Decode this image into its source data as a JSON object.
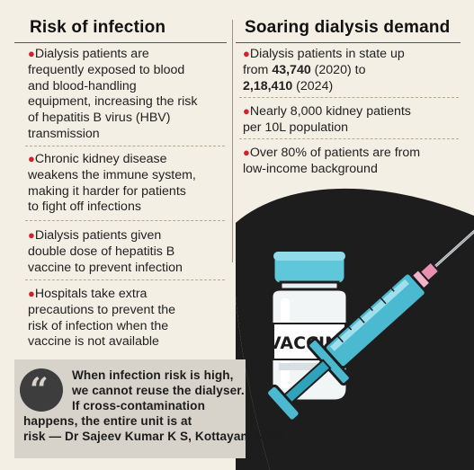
{
  "left": {
    "heading": "Risk of infection",
    "bullets": [
      {
        "lines": [
          "Dialysis patients are",
          "frequently exposed to blood",
          "and blood-handling",
          "equipment, increasing the risk",
          "of hepatitis B virus (HBV)",
          "transmission"
        ]
      },
      {
        "lines": [
          "Chronic kidney disease",
          "weakens the immune system,",
          "making it harder for patients",
          "to fight off infections"
        ]
      },
      {
        "lines": [
          "Dialysis patients given",
          "double dose of hepatitis B",
          "vaccine to prevent infection"
        ]
      },
      {
        "lines": [
          "Hospitals take extra",
          "precautions to prevent the",
          "risk of infection when the",
          "vaccine is not available"
        ]
      }
    ]
  },
  "right": {
    "heading": "Soaring dialysis demand",
    "bullet1": {
      "line1": "Dialysis patients in state up",
      "line2_pre": "from ",
      "line2_bold": "43,740",
      "line2_post": " (2020) to",
      "line3_bold": "2,18,410",
      "line3_post": " (2024)"
    },
    "bullet2": {
      "lines": [
        "Nearly 8,000 kidney patients",
        "per 10L population"
      ]
    },
    "bullet3": {
      "lines": [
        "Over 80% of patients are from",
        "low-income background"
      ]
    }
  },
  "quote": {
    "lines": [
      "When infection risk is high,",
      "we cannot reuse the dialyser.",
      "If cross-contamination",
      "happens, the entire unit is at",
      "risk — Dr Sajeev Kumar K S, Kottayam MCH"
    ]
  },
  "illustration": {
    "vial_label": "VACCINE",
    "colors": {
      "background": "#f4efe4",
      "dark": "#1d1d1d",
      "vial_cap": "#5ec7d9",
      "syringe_barrel": "#4bb9cf",
      "plunger_tip": "#e98fb1",
      "accent_red": "#d3202a"
    }
  }
}
